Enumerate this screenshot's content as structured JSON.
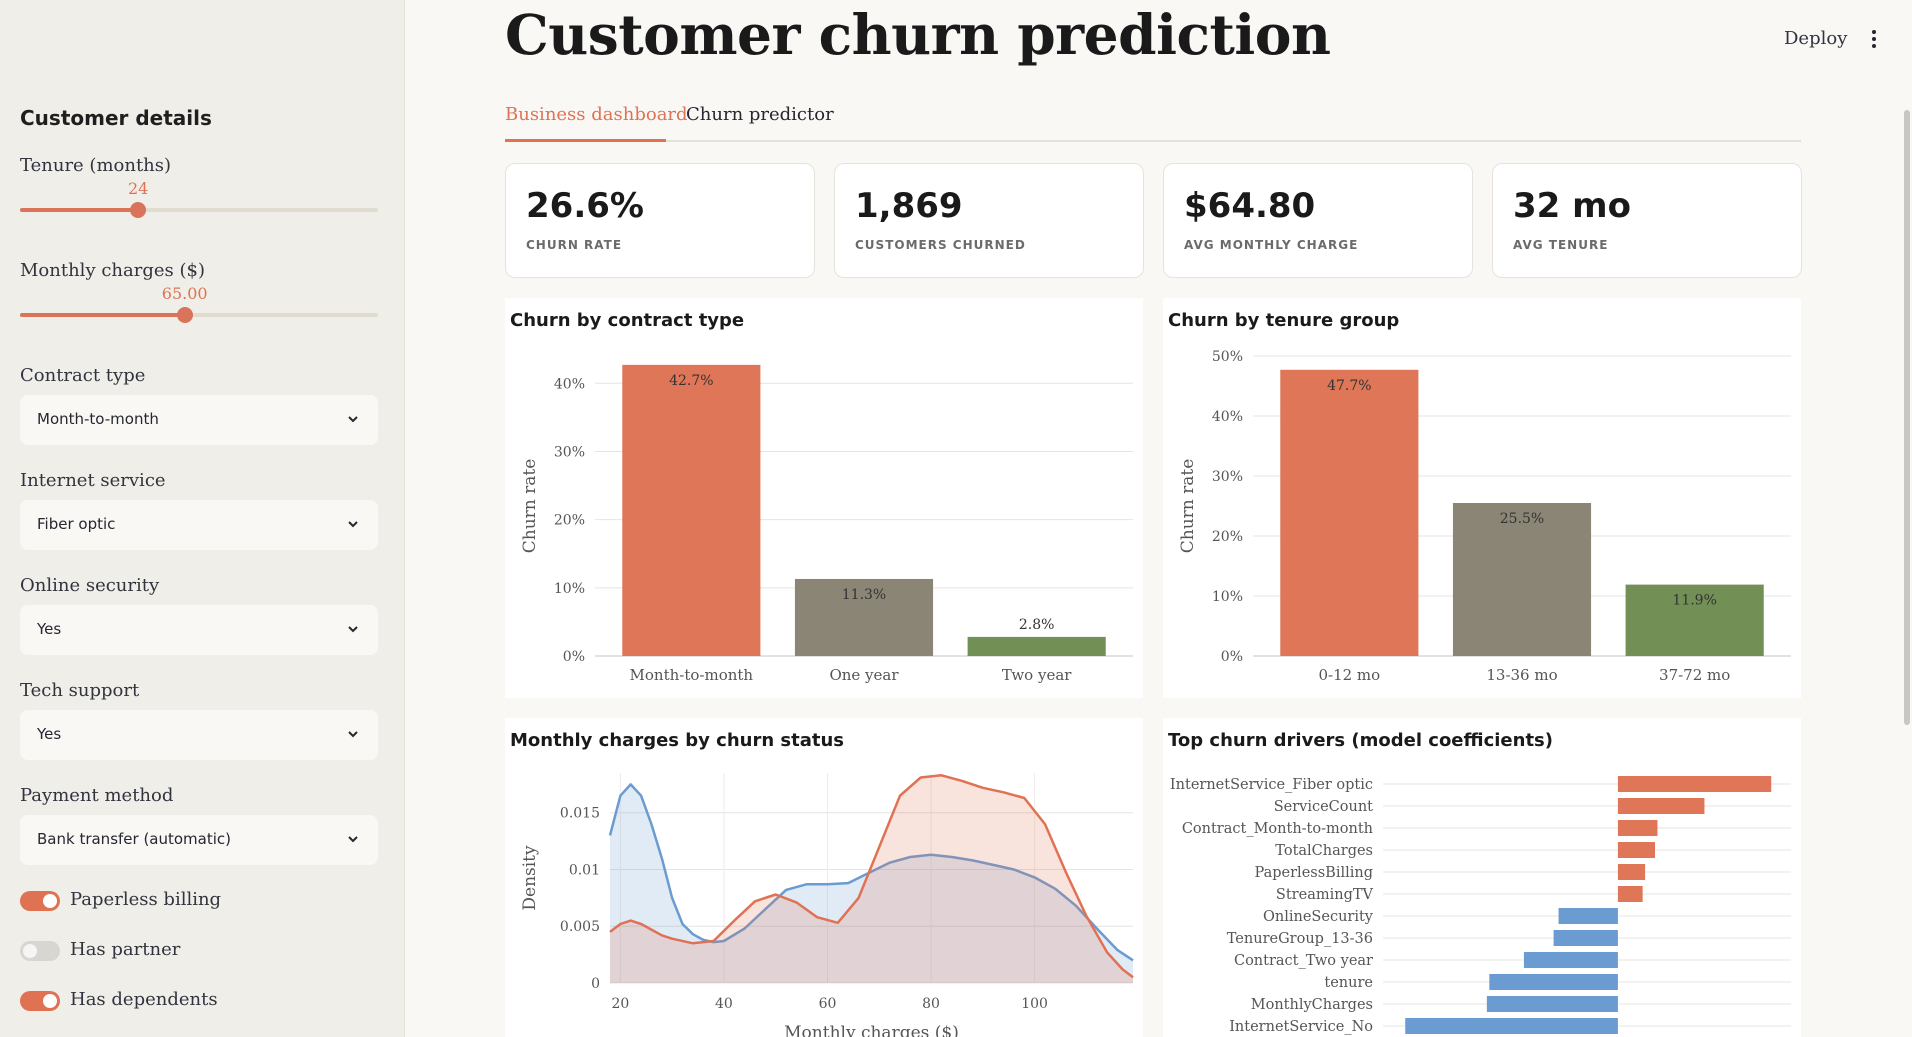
{
  "sidebar": {
    "title": "Customer details",
    "tenure": {
      "label": "Tenure (months)",
      "value": "24",
      "fraction": 0.33
    },
    "monthly_charges": {
      "label": "Monthly charges ($)",
      "value": "65.00",
      "fraction": 0.46
    },
    "contract": {
      "label": "Contract type",
      "selected": "Month-to-month"
    },
    "internet": {
      "label": "Internet service",
      "selected": "Fiber optic"
    },
    "security": {
      "label": "Online security",
      "selected": "Yes"
    },
    "tech": {
      "label": "Tech support",
      "selected": "Yes"
    },
    "payment": {
      "label": "Payment method",
      "selected": "Bank transfer (automatic)"
    },
    "toggles": [
      {
        "label": "Paperless billing",
        "on": true
      },
      {
        "label": "Has partner",
        "on": false
      },
      {
        "label": "Has dependents",
        "on": true
      }
    ]
  },
  "header": {
    "title": "Customer churn prediction",
    "deploy": "Deploy",
    "menu_icon": "more-vertical-icon"
  },
  "tabs": [
    {
      "label": "Business dashboard",
      "active": true
    },
    {
      "label": "Churn predictor",
      "active": false
    }
  ],
  "kpis": [
    {
      "value": "26.6%",
      "label": "CHURN RATE"
    },
    {
      "value": "1,869",
      "label": "CUSTOMERS CHURNED"
    },
    {
      "value": "$64.80",
      "label": "AVG MONTHLY CHARGE"
    },
    {
      "value": "32 mo",
      "label": "AVG TENURE"
    }
  ],
  "colors": {
    "accent": "#e07254",
    "gray": "#8a8574",
    "green": "#728f56",
    "blue": "#6a9bd1"
  },
  "chart_data": [
    {
      "type": "bar",
      "title": "Churn by contract type",
      "ylabel": "Churn rate",
      "xlabel": "",
      "categories": [
        "Month-to-month",
        "One year",
        "Two year"
      ],
      "values": [
        42.7,
        11.3,
        2.8
      ],
      "labels": [
        "42.7%",
        "11.3%",
        "2.8%"
      ],
      "colors": [
        "#de7657",
        "#8a8574",
        "#728f56"
      ],
      "ylim": [
        0,
        44
      ],
      "yticks": [
        0,
        10,
        20,
        30,
        40
      ],
      "ytick_labels": [
        "0%",
        "10%",
        "20%",
        "30%",
        "40%"
      ],
      "grid": true
    },
    {
      "type": "bar",
      "title": "Churn by tenure group",
      "ylabel": "Churn rate",
      "xlabel": "",
      "categories": [
        "0-12 mo",
        "13-36 mo",
        "37-72 mo"
      ],
      "values": [
        47.7,
        25.5,
        11.9
      ],
      "labels": [
        "47.7%",
        "25.5%",
        "11.9%"
      ],
      "colors": [
        "#de7657",
        "#8a8574",
        "#728f56"
      ],
      "ylim": [
        0,
        50
      ],
      "yticks": [
        0,
        10,
        20,
        30,
        40,
        50
      ],
      "ytick_labels": [
        "0%",
        "10%",
        "20%",
        "30%",
        "40%",
        "50%"
      ],
      "grid": true
    },
    {
      "type": "area",
      "title": "Monthly charges by churn status",
      "xlabel": "Monthly charges ($)",
      "ylabel": "Density",
      "xlim": [
        18,
        119
      ],
      "ylim": [
        0,
        0.0185
      ],
      "xticks": [
        20,
        40,
        60,
        80,
        100
      ],
      "yticks": [
        0,
        0.005,
        0.01,
        0.015
      ],
      "ytick_labels": [
        "0",
        "0.005",
        "0.01",
        "0.015"
      ],
      "series": [
        {
          "color": "#6a9bd1",
          "x": [
            18,
            20,
            22,
            24,
            26,
            28,
            30,
            32,
            34,
            36,
            38,
            40,
            44,
            48,
            52,
            56,
            60,
            64,
            68,
            72,
            76,
            80,
            84,
            88,
            92,
            96,
            100,
            104,
            108,
            112,
            116,
            119
          ],
          "y": [
            0.013,
            0.0165,
            0.0175,
            0.0165,
            0.014,
            0.011,
            0.0075,
            0.0052,
            0.0043,
            0.0038,
            0.0036,
            0.0037,
            0.0048,
            0.0065,
            0.0082,
            0.0087,
            0.0087,
            0.0088,
            0.0097,
            0.0106,
            0.0111,
            0.0113,
            0.0111,
            0.0108,
            0.0104,
            0.01,
            0.0093,
            0.0083,
            0.0068,
            0.0048,
            0.0029,
            0.002
          ]
        },
        {
          "color": "#e07254",
          "x": [
            18,
            20,
            22,
            24,
            26,
            28,
            30,
            34,
            38,
            42,
            46,
            50,
            54,
            58,
            62,
            66,
            70,
            74,
            78,
            82,
            86,
            90,
            94,
            98,
            102,
            106,
            110,
            114,
            117,
            119
          ],
          "y": [
            0.0045,
            0.0052,
            0.0055,
            0.0052,
            0.0047,
            0.0042,
            0.0039,
            0.0035,
            0.0037,
            0.0055,
            0.0072,
            0.0078,
            0.0071,
            0.0058,
            0.0053,
            0.0075,
            0.012,
            0.0165,
            0.0181,
            0.0183,
            0.0178,
            0.0172,
            0.0168,
            0.0163,
            0.014,
            0.0098,
            0.0059,
            0.0027,
            0.0012,
            0.0005
          ]
        }
      ]
    },
    {
      "type": "bar",
      "orientation": "horizontal",
      "title": "Top churn drivers (model coefficients)",
      "categories": [
        "InternetService_Fiber optic",
        "ServiceCount",
        "Contract_Month-to-month",
        "TotalCharges",
        "PaperlessBilling",
        "StreamingTV",
        "OnlineSecurity",
        "TenureGroup_13-36",
        "Contract_Two year",
        "tenure",
        "MonthlyCharges",
        "InternetService_No"
      ],
      "values": [
        0.62,
        0.35,
        0.16,
        0.15,
        0.11,
        0.1,
        -0.24,
        -0.26,
        -0.38,
        -0.52,
        -0.53,
        -0.86
      ],
      "xlim": [
        -0.95,
        0.7
      ],
      "colors": {
        "positive": "#de7657",
        "negative": "#6a9bd1"
      },
      "grid": true
    }
  ]
}
